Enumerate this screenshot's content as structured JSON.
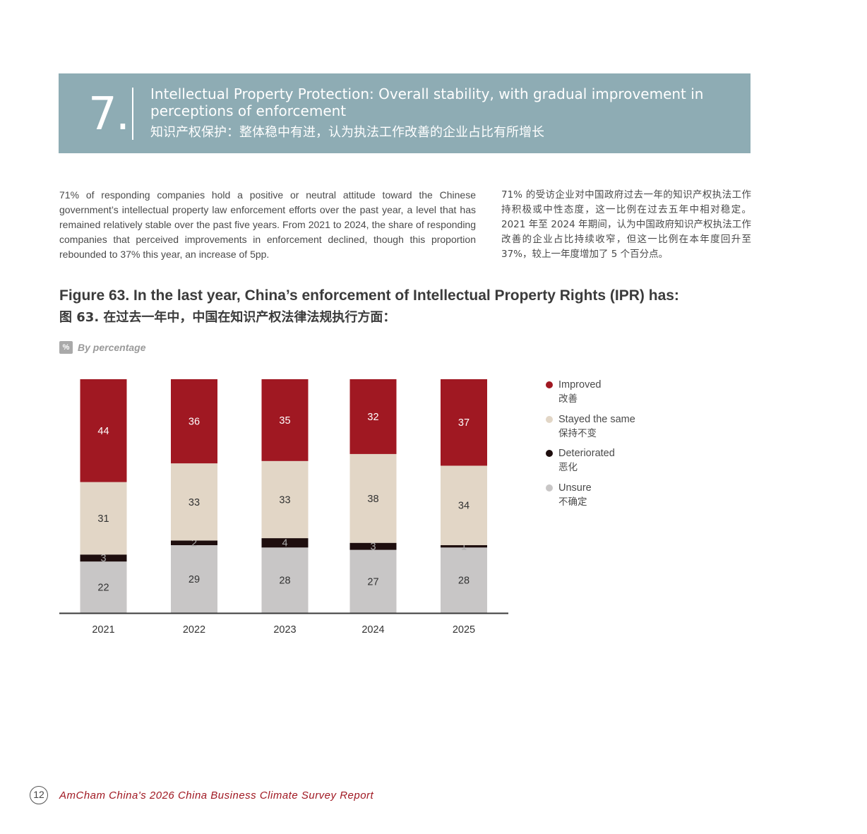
{
  "section": {
    "number": "7.",
    "title_en": "Intellectual Property Protection: Overall stability,  with gradual improvement in perceptions of enforcement",
    "title_zh": "知识产权保护：整体稳中有进，认为执法工作改善的企业占比有所增长"
  },
  "body": {
    "en": "71% of responding companies hold a positive or neutral attitude toward the Chinese government’s intellectual property law enforcement efforts over the past year, a level that has remained relatively stable over the past five years. From 2021 to 2024, the share of responding companies that perceived improvements in enforcement declined, though this proportion rebounded to 37% this year, an increase of 5pp.",
    "zh": "71% 的受访企业对中国政府过去一年的知识产权执法工作持积极或中性态度，这一比例在过去五年中相对稳定。2021 年至 2024 年期间，认为中国政府知识产权执法工作改善的企业占比持续收窄，但这一比例在本年度回升至 37%，较上一年度增加了 5 个百分点。"
  },
  "figure": {
    "title_en": "Figure 63. In the last year, China’s enforcement of Intellectual Property Rights (IPR) has:",
    "title_zh": "图 63. 在过去一年中，中国在知识产权法律法规执行方面：",
    "unit_badge": "%",
    "unit_text": "By percentage"
  },
  "chart_data": {
    "type": "bar",
    "stacked": true,
    "categories": [
      "2021",
      "2022",
      "2023",
      "2024",
      "2025"
    ],
    "stack_order_bottom_to_top": [
      "Unsure",
      "Deteriorated",
      "Stayed the same",
      "Improved"
    ],
    "series": [
      {
        "name": "Improved",
        "name_zh": "改善",
        "color": "#a01822",
        "label_color": "#ffffff",
        "values": [
          44,
          36,
          35,
          32,
          37
        ]
      },
      {
        "name": "Stayed the same",
        "name_zh": "保持不变",
        "color": "#e2d6c6",
        "label_color": "#333333",
        "values": [
          31,
          33,
          33,
          38,
          34
        ]
      },
      {
        "name": "Deteriorated",
        "name_zh": "恶化",
        "color": "#1e0e0e",
        "label_color": "#aaaaaa",
        "values": [
          3,
          2,
          4,
          3,
          1
        ]
      },
      {
        "name": "Unsure",
        "name_zh": "不确定",
        "color": "#c8c6c6",
        "label_color": "#333333",
        "values": [
          22,
          29,
          28,
          27,
          28
        ]
      }
    ],
    "ylim": [
      0,
      100
    ],
    "grid": false,
    "legend_position": "right"
  },
  "footer": {
    "page_number": "12",
    "text": "AmCham China's 2026 China Business Climate Survey Report"
  }
}
